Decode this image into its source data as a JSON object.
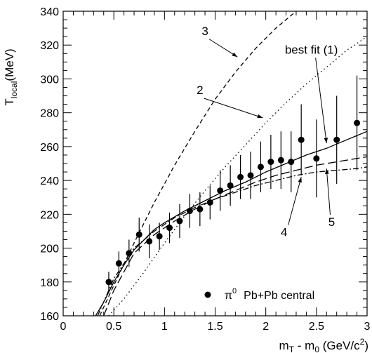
{
  "chart_data": {
    "type": "scatter",
    "xlabel": {
      "main": "m",
      "sub1": "T",
      "mid": " - m",
      "sub2": "0",
      "tail": "  (GeV/c",
      "sup": "2",
      "close": ")"
    },
    "ylabel": {
      "main": "T",
      "sub": "local",
      "tail": "(MeV)"
    },
    "xlim": [
      0,
      3
    ],
    "ylim": [
      160,
      340
    ],
    "x_ticks": [
      0,
      0.5,
      1,
      1.5,
      2,
      2.5,
      3
    ],
    "x_tick_labels": [
      "0",
      "0.5",
      "1",
      "1.5",
      "2",
      "2.5",
      "3"
    ],
    "y_ticks": [
      160,
      180,
      200,
      220,
      240,
      260,
      280,
      300,
      320,
      340
    ],
    "y_tick_labels": [
      "160",
      "180",
      "200",
      "220",
      "240",
      "260",
      "280",
      "300",
      "320",
      "340"
    ],
    "grid": false,
    "data_points": {
      "name": "π0 Pb+Pb central",
      "x": [
        0.45,
        0.55,
        0.65,
        0.75,
        0.85,
        0.95,
        1.05,
        1.15,
        1.25,
        1.35,
        1.45,
        1.55,
        1.65,
        1.75,
        1.85,
        1.95,
        2.05,
        2.15,
        2.25,
        2.35,
        2.5,
        2.7,
        2.9
      ],
      "y": [
        180,
        191,
        197,
        208,
        204,
        207,
        212,
        216,
        222,
        223,
        227,
        234,
        237,
        242,
        243,
        248,
        251,
        252,
        251,
        264,
        253,
        264,
        274
      ],
      "err": [
        6,
        7,
        8,
        10,
        10,
        8,
        9,
        10,
        10,
        10,
        10,
        12,
        12,
        13,
        14,
        15,
        16,
        17,
        18,
        21,
        23,
        26,
        28
      ]
    },
    "curves": [
      {
        "label": "best fit (1)",
        "style": "solid",
        "x": [
          0.32,
          0.4,
          0.5,
          0.6,
          0.7,
          0.8,
          0.9,
          1.0,
          1.2,
          1.4,
          1.6,
          1.8,
          2.0,
          2.2,
          2.4,
          2.6,
          2.8,
          3.0
        ],
        "y": [
          160,
          168,
          180,
          190,
          199,
          205,
          211,
          215,
          222,
          228,
          234,
          239,
          245,
          250,
          255,
          259,
          264,
          269
        ]
      },
      {
        "label": "2",
        "style": "dotted",
        "x": [
          0.45,
          0.6,
          0.8,
          1.0,
          1.2,
          1.4,
          1.6,
          1.8,
          2.0,
          2.2,
          2.4,
          2.6,
          2.8,
          3.0
        ],
        "y": [
          160,
          170,
          186,
          203,
          219,
          234,
          248,
          261,
          274,
          286,
          297,
          307,
          317,
          325
        ]
      },
      {
        "label": "3",
        "style": "dashed",
        "x": [
          0.36,
          0.5,
          0.7,
          0.9,
          1.1,
          1.3,
          1.5,
          1.7,
          1.9,
          2.1,
          2.3,
          2.45
        ],
        "y": [
          160,
          178,
          203,
          227,
          249,
          269,
          288,
          304,
          318,
          330,
          340,
          346
        ]
      },
      {
        "label": "4",
        "style": "dash-dot",
        "x": [
          0.34,
          0.5,
          0.7,
          0.9,
          1.1,
          1.3,
          1.5,
          1.7,
          1.9,
          2.1,
          2.3,
          2.5,
          2.7,
          2.9,
          3.0
        ],
        "y": [
          160,
          182,
          200,
          210,
          218,
          224,
          229,
          233,
          237,
          240,
          243,
          245,
          246,
          247,
          248
        ]
      },
      {
        "label": "5",
        "style": "long-dash",
        "x": [
          0.4,
          0.5,
          0.7,
          0.9,
          1.1,
          1.3,
          1.5,
          1.7,
          1.9,
          2.1,
          2.3,
          2.5,
          2.7,
          2.9,
          3.0
        ],
        "y": [
          160,
          175,
          197,
          208,
          216,
          223,
          229,
          234,
          239,
          243,
          246,
          249,
          251,
          253,
          254
        ]
      }
    ],
    "annotations": [
      {
        "text": "3",
        "x": 1.4,
        "y": 326,
        "arrow_to": [
          1.72,
          313
        ]
      },
      {
        "text": "2",
        "x": 1.35,
        "y": 291,
        "arrow_to": [
          1.97,
          277
        ]
      },
      {
        "text": "best fit (1)",
        "x": 2.45,
        "y": 315,
        "arrow_to": [
          2.6,
          262
        ]
      },
      {
        "text": "4",
        "x": 2.18,
        "y": 207,
        "arrow_to": [
          2.35,
          242
        ]
      },
      {
        "text": "5",
        "x": 2.65,
        "y": 213,
        "arrow_to": [
          2.6,
          247
        ]
      }
    ],
    "legend": {
      "position": "bottom-right",
      "symbol": "filled-circle",
      "pi": "π",
      "sup": "0",
      "text": "Pb+Pb central"
    }
  }
}
